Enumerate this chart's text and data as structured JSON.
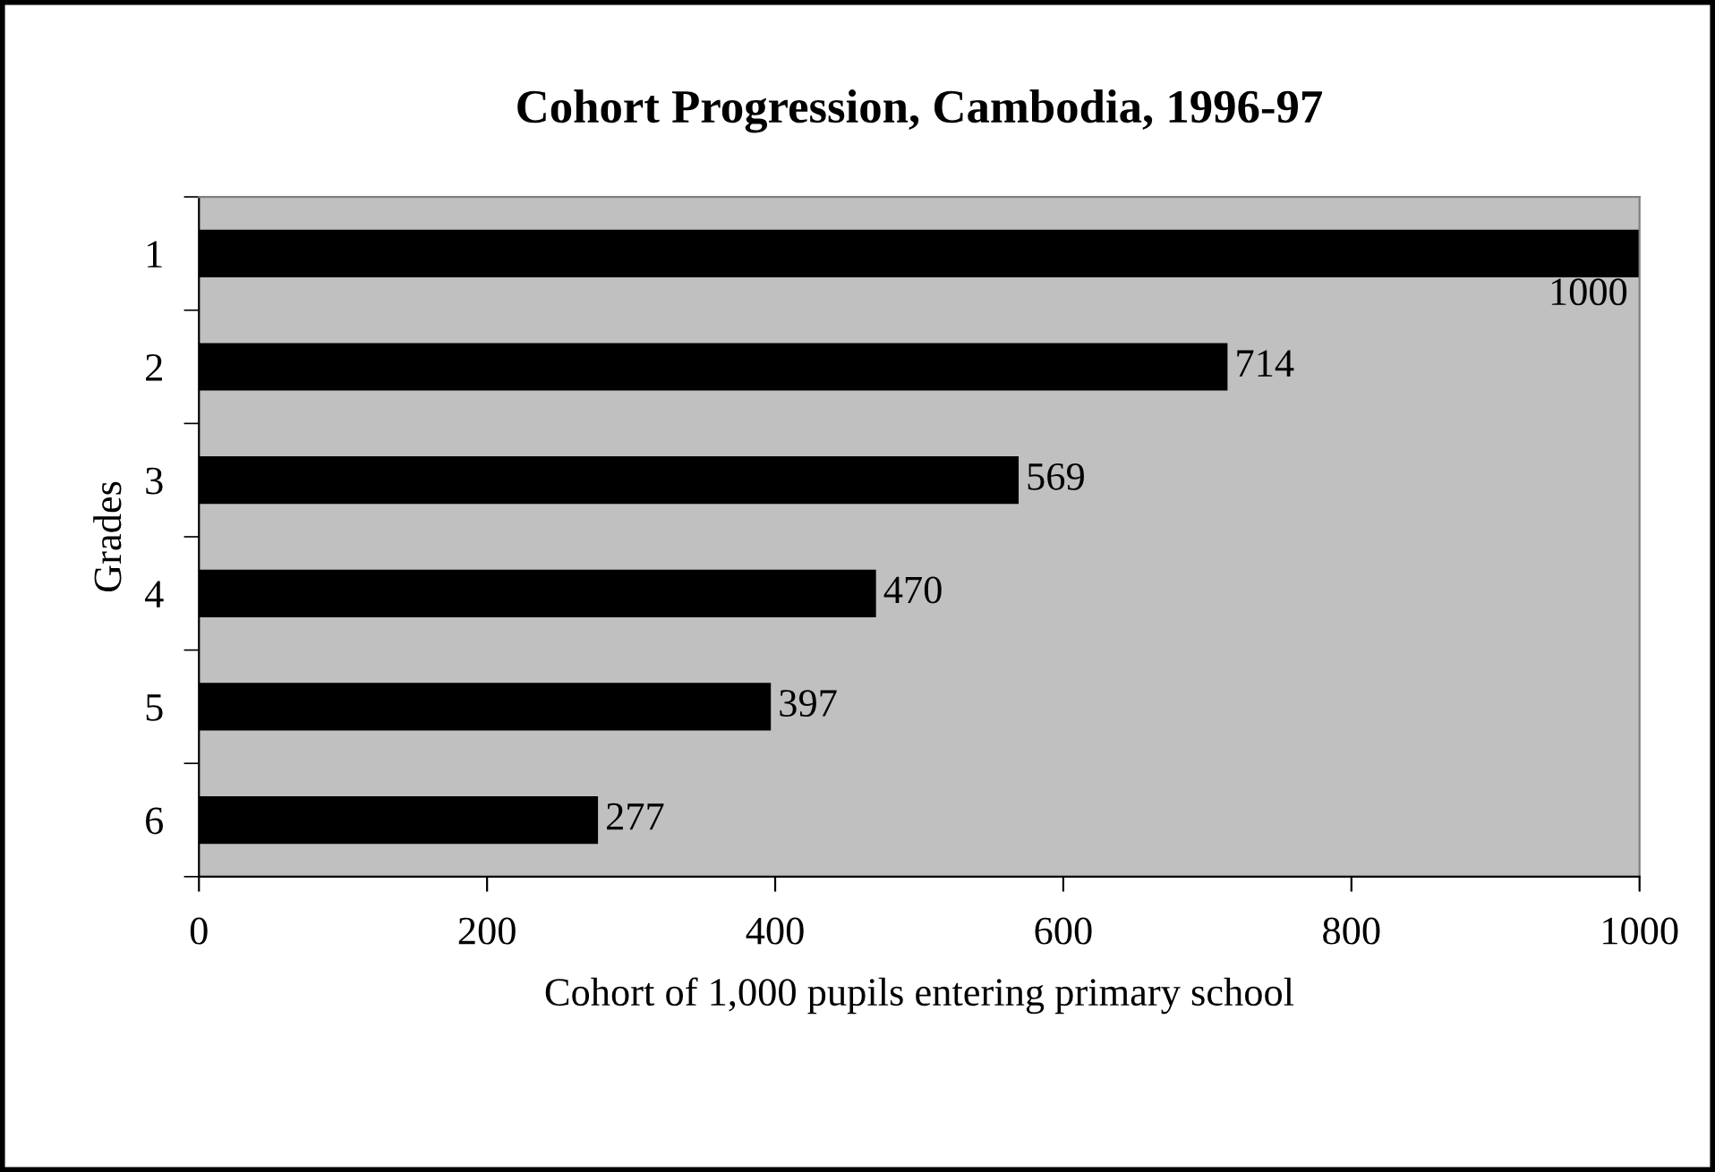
{
  "chart_data": {
    "type": "bar",
    "orientation": "horizontal",
    "title": "Cohort Progression, Cambodia, 1996-97",
    "xlabel": "Cohort of 1,000 pupils entering primary school",
    "ylabel": "Grades",
    "categories": [
      "1",
      "2",
      "3",
      "4",
      "5",
      "6"
    ],
    "values": [
      1000,
      714,
      569,
      470,
      397,
      277
    ],
    "color": "#000000",
    "xlim": [
      0,
      1000
    ],
    "xticks": [
      0,
      200,
      400,
      600,
      800,
      1000
    ],
    "grid": false,
    "data_labels": true,
    "legend": false
  }
}
